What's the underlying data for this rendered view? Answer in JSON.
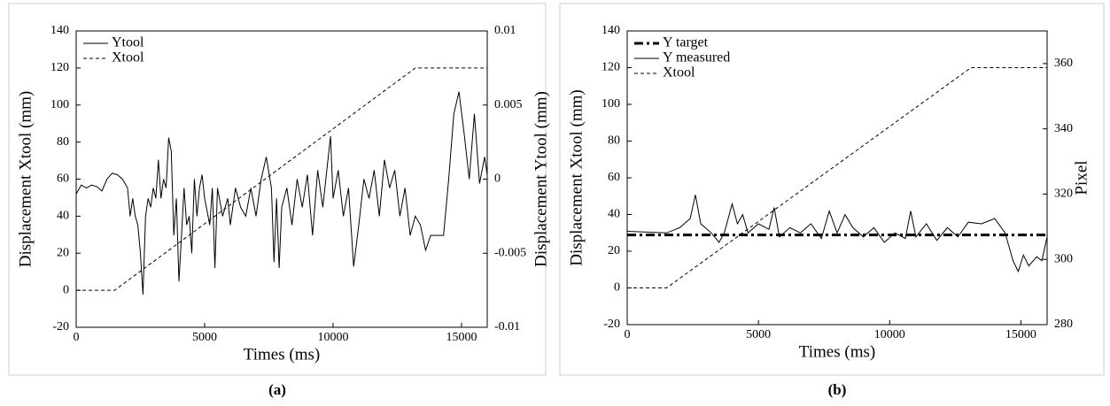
{
  "chart_data": [
    {
      "type": "line",
      "caption": "(a)",
      "xlabel": "Times (ms)",
      "ylabel": "Displacement Xtool (mm)",
      "y2label": "Displacement Ytool (mm)",
      "xlim": [
        0,
        16000
      ],
      "xticks": [
        0,
        5000,
        10000,
        15000
      ],
      "ylim": [
        -20,
        140
      ],
      "yticks": [
        -20,
        0,
        20,
        40,
        60,
        80,
        100,
        120,
        140
      ],
      "y2lim": [
        -0.01,
        0.01
      ],
      "y2ticks": [
        -0.01,
        -0.005,
        0,
        0.005,
        0.01
      ],
      "legend": "upper left",
      "grid": false,
      "series": [
        {
          "name": "Ytool",
          "color": "#000000",
          "dash": "solid",
          "axis": "y2",
          "x": [
            0,
            200,
            400,
            600,
            800,
            1000,
            1200,
            1400,
            1600,
            1800,
            2000,
            2100,
            2200,
            2300,
            2400,
            2500,
            2600,
            2700,
            2800,
            2900,
            3000,
            3100,
            3200,
            3300,
            3400,
            3500,
            3600,
            3700,
            3800,
            3900,
            4000,
            4100,
            4200,
            4300,
            4400,
            4500,
            4600,
            4700,
            4800,
            4900,
            5000,
            5200,
            5300,
            5400,
            5500,
            5700,
            5900,
            6000,
            6200,
            6400,
            6600,
            6800,
            7000,
            7200,
            7400,
            7600,
            7700,
            7800,
            7900,
            8000,
            8200,
            8400,
            8600,
            8800,
            9000,
            9200,
            9400,
            9600,
            9800,
            9900,
            10000,
            10200,
            10400,
            10600,
            10800,
            11000,
            11200,
            11400,
            11600,
            11800,
            12000,
            12200,
            12400,
            12600,
            12800,
            13000,
            13200,
            13400,
            13600,
            13800,
            14000,
            14300,
            14500,
            14700,
            14900,
            15100,
            15300,
            15500,
            15700,
            15900,
            16000
          ],
          "values": [
            -0.001,
            -0.0004,
            -0.0006,
            -0.0004,
            -0.0005,
            -0.0008,
            0,
            0.0004,
            0.0003,
            0,
            -0.0006,
            -0.0025,
            -0.0013,
            -0.0025,
            -0.0031,
            -0.005,
            -0.0078,
            -0.0025,
            -0.0013,
            -0.0019,
            -0.0006,
            -0.0013,
            0.0013,
            -0.0013,
            0,
            -0.0006,
            0.0028,
            0.0019,
            -0.0038,
            -0.0013,
            -0.0069,
            -0.0038,
            -0.0006,
            -0.0031,
            -0.0025,
            -0.005,
            0,
            -0.0025,
            -0.0006,
            0.0003,
            -0.0013,
            -0.0031,
            -0.0006,
            -0.006,
            -0.0006,
            -0.0025,
            -0.0013,
            -0.0031,
            -0.0006,
            -0.0019,
            -0.0025,
            -0.0006,
            -0.0025,
            0,
            0.0015,
            -0.0006,
            -0.0056,
            -0.0013,
            -0.006,
            -0.0019,
            -0.0006,
            -0.0031,
            0,
            -0.0019,
            0.0003,
            -0.0038,
            0.0006,
            -0.0019,
            0.0013,
            0.0029,
            -0.0013,
            0.0006,
            -0.0025,
            -0.0006,
            -0.0059,
            -0.0031,
            0,
            -0.0013,
            0.0006,
            -0.0025,
            0.0013,
            -0.0006,
            0.0006,
            -0.0025,
            -0.0006,
            -0.0038,
            -0.0025,
            -0.0031,
            -0.0048,
            -0.0038,
            -0.0038,
            -0.0038,
            0,
            0.0044,
            0.0059,
            0.0031,
            0,
            0.0044,
            -0.0003,
            0.0015,
            0.0003
          ]
        },
        {
          "name": "Xtool",
          "color": "#000000",
          "dash": "dashed",
          "x": [
            0,
            1500,
            13200,
            16000
          ],
          "values": [
            0,
            0,
            120,
            120
          ]
        }
      ]
    },
    {
      "type": "line",
      "caption": "(b)",
      "xlabel": "Times (ms)",
      "ylabel": "Displacement Xtool (mm)",
      "y2label": "Pixel",
      "xlim": [
        0,
        16000
      ],
      "xticks": [
        0,
        5000,
        10000,
        15000
      ],
      "ylim": [
        -20,
        140
      ],
      "yticks": [
        -20,
        0,
        20,
        40,
        60,
        80,
        100,
        120,
        140
      ],
      "y2lim": [
        280,
        370
      ],
      "y2ticks": [
        280,
        300,
        320,
        340,
        360
      ],
      "legend": "upper left",
      "grid": false,
      "series": [
        {
          "name": "Y target",
          "color": "#000000",
          "dash": "dashdot",
          "axis": "y2",
          "x": [
            0,
            16000
          ],
          "values": [
            307.5,
            307.5
          ]
        },
        {
          "name": "Y measured",
          "color": "#000000",
          "dash": "solid",
          "axis": "y2",
          "x": [
            0,
            1500,
            2000,
            2400,
            2600,
            2800,
            3200,
            3500,
            3700,
            4000,
            4200,
            4400,
            4600,
            5000,
            5400,
            5600,
            5800,
            6200,
            6600,
            7000,
            7400,
            7700,
            8000,
            8300,
            8600,
            9000,
            9400,
            9800,
            10200,
            10600,
            10800,
            11000,
            11400,
            11800,
            12200,
            12600,
            13000,
            13500,
            14000,
            14400,
            14700,
            14900,
            15100,
            15300,
            15600,
            15800,
            16000
          ],
          "values": [
            308.6,
            308.1,
            309.7,
            312.5,
            319.8,
            310.9,
            308.1,
            305.2,
            308.1,
            317.0,
            310.9,
            313.7,
            308.1,
            310.9,
            309.2,
            315.9,
            306.9,
            309.7,
            308.1,
            310.9,
            306.4,
            314.8,
            308.1,
            313.7,
            309.7,
            306.9,
            309.7,
            305.2,
            308.1,
            306.4,
            314.8,
            306.9,
            310.9,
            305.8,
            309.7,
            306.9,
            311.4,
            310.9,
            312.5,
            308.1,
            299.6,
            296.3,
            301.3,
            298.0,
            300.8,
            299.6,
            306.9
          ]
        },
        {
          "name": "Xtool",
          "color": "#000000",
          "dash": "dashed",
          "x": [
            0,
            1500,
            13100,
            16000
          ],
          "values": [
            0,
            0,
            120,
            120
          ]
        }
      ]
    }
  ]
}
